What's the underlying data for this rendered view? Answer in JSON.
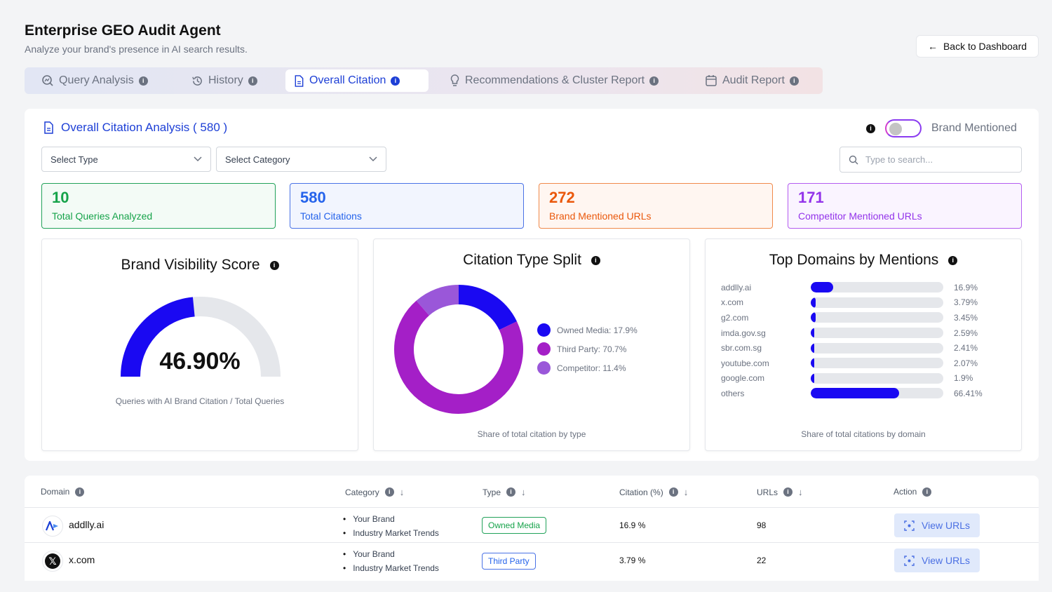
{
  "header": {
    "title": "Enterprise GEO Audit Agent",
    "subtitle": "Analyze your brand's presence in AI search results.",
    "back_label": "Back to Dashboard"
  },
  "tabs": [
    {
      "label": "Query Analysis",
      "icon": "magnifier-chart-icon",
      "active": false
    },
    {
      "label": "History",
      "icon": "history-icon",
      "active": false
    },
    {
      "label": "Overall Citation",
      "icon": "document-icon",
      "active": true
    },
    {
      "label": "Recommendations & Cluster Report",
      "icon": "lightbulb-icon",
      "active": false
    },
    {
      "label": "Audit Report",
      "icon": "calendar-report-icon",
      "active": false
    }
  ],
  "panel": {
    "title": "Overall Citation Analysis ( 580 )",
    "toggle_label": "Brand Mentioned",
    "toggle_on": false,
    "select_type": "Select Type",
    "select_category": "Select Category",
    "search_placeholder": "Type to search..."
  },
  "stats": [
    {
      "value": "10",
      "label": "Total Queries Analyzed",
      "color": "#16a34a"
    },
    {
      "value": "580",
      "label": "Total Citations",
      "color": "#2563eb"
    },
    {
      "value": "272",
      "label": "Brand Mentioned URLs",
      "color": "#ea580c"
    },
    {
      "value": "171",
      "label": "Competitor Mentioned URLs",
      "color": "#9333ea"
    }
  ],
  "visibility": {
    "title": "Brand Visibility Score",
    "value_text": "46.90%",
    "value": 46.9,
    "caption": "Queries with AI Brand Citation / Total Queries"
  },
  "citation_split": {
    "title": "Citation Type Split",
    "caption": "Share of total citation by type",
    "slices": [
      {
        "label": "Owned Media: 17.9%",
        "value": 17.9,
        "color": "#1a09f2"
      },
      {
        "label": "Third Party: 70.7%",
        "value": 70.7,
        "color": "#a41fc7"
      },
      {
        "label": "Competitor: 11.4%",
        "value": 11.4,
        "color": "#9a57d9"
      }
    ]
  },
  "top_domains": {
    "title": "Top Domains by Mentions",
    "caption": "Share of total citations by domain",
    "rows": [
      {
        "name": "addlly.ai",
        "value": 16.9,
        "label": "16.9%"
      },
      {
        "name": "x.com",
        "value": 3.79,
        "label": "3.79%"
      },
      {
        "name": "g2.com",
        "value": 3.45,
        "label": "3.45%"
      },
      {
        "name": "imda.gov.sg",
        "value": 2.59,
        "label": "2.59%"
      },
      {
        "name": "sbr.com.sg",
        "value": 2.41,
        "label": "2.41%"
      },
      {
        "name": "youtube.com",
        "value": 2.07,
        "label": "2.07%"
      },
      {
        "name": "google.com",
        "value": 1.9,
        "label": "1.9%"
      },
      {
        "name": "others",
        "value": 66.41,
        "label": "66.41%"
      }
    ]
  },
  "table": {
    "headers": [
      "Domain",
      "Category",
      "Type",
      "Citation (%)",
      "URLs",
      "Action"
    ],
    "rows": [
      {
        "domain": "addlly.ai",
        "logo": "addlly-logo-icon",
        "categories": [
          "Your Brand",
          "Industry Market Trends"
        ],
        "type": "Owned Media",
        "citation": "16.9 %",
        "urls": "98",
        "action": "View URLs"
      },
      {
        "domain": "x.com",
        "logo": "x-logo-icon",
        "categories": [
          "Your Brand",
          "Industry Market Trends"
        ],
        "type": "Third Party",
        "citation": "3.79 %",
        "urls": "22",
        "action": "View URLs"
      }
    ]
  }
}
